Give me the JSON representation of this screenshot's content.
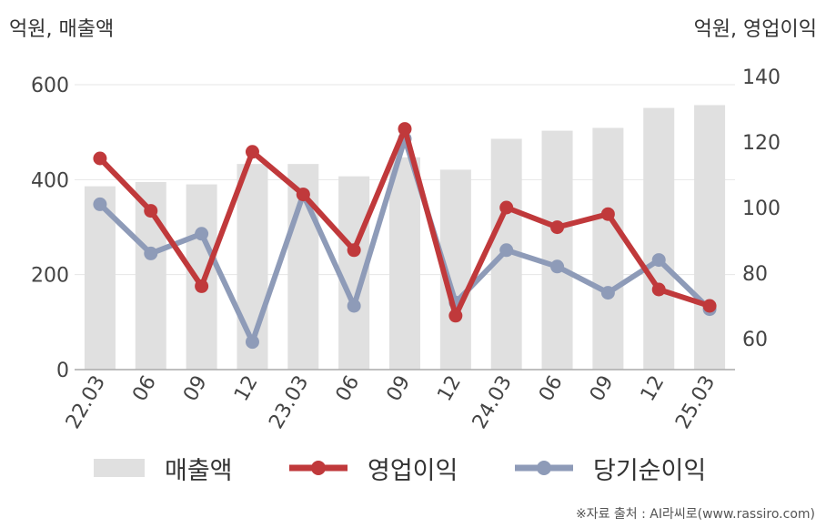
{
  "left_unit": "억원, 매출액",
  "right_unit": "억원, 영업이익",
  "source": "※자료 출처 : AI라씨로(www.rassiro.com)",
  "legend": [
    {
      "label": "매출액",
      "kind": "bar",
      "color": "#e0e0e0"
    },
    {
      "label": "영업이익",
      "kind": "line",
      "color": "#c0393b"
    },
    {
      "label": "당기순이익",
      "kind": "line",
      "color": "#8e9bb8"
    }
  ],
  "chart_data": {
    "type": "bar",
    "categories": [
      "22.03",
      "06",
      "09",
      "12",
      "23.03",
      "06",
      "09",
      "12",
      "24.03",
      "06",
      "09",
      "12",
      "25.03"
    ],
    "y_left": {
      "range": [
        0,
        600
      ],
      "ticks": [
        0,
        200,
        400,
        600
      ]
    },
    "y_right": {
      "range": [
        50,
        140
      ],
      "ticks": [
        60,
        80,
        100,
        120,
        140
      ]
    },
    "grid": true,
    "legend_position": "bottom",
    "series": [
      {
        "name": "매출액",
        "type": "bar",
        "axis": "left",
        "color": "#e0e0e0",
        "values": [
          386,
          395,
          390,
          433,
          433,
          407,
          447,
          421,
          486,
          503,
          509,
          551,
          557
        ]
      },
      {
        "name": "영업이익",
        "type": "line",
        "axis": "right",
        "color": "#c0393b",
        "values": [
          115,
          99,
          76,
          117,
          104,
          87,
          124,
          67,
          100,
          94,
          98,
          75,
          70
        ]
      },
      {
        "name": "당기순이익",
        "type": "line",
        "axis": "right",
        "color": "#8e9bb8",
        "values": [
          101,
          86,
          92,
          59,
          104,
          70,
          121,
          71,
          87,
          82,
          74,
          84,
          69
        ]
      }
    ]
  }
}
